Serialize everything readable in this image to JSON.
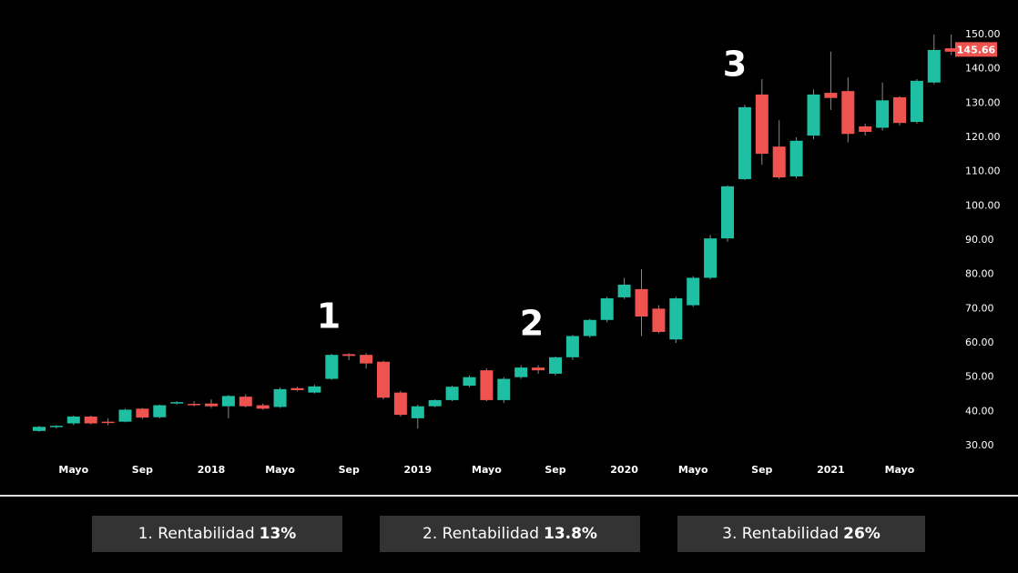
{
  "chart_data": {
    "type": "candlestick",
    "categories": [
      null,
      null,
      "Mayo",
      null,
      null,
      null,
      "Sep",
      null,
      null,
      null,
      "2018",
      null,
      null,
      null,
      "Mayo",
      null,
      null,
      null,
      "Sep",
      null,
      null,
      null,
      "2019",
      null,
      null,
      null,
      "Mayo",
      null,
      null,
      null,
      "Sep",
      null,
      null,
      null,
      "2020",
      null,
      null,
      null,
      "Mayo",
      null,
      null,
      null,
      "Sep",
      null,
      null,
      null,
      "2021",
      null,
      null,
      null,
      "Mayo",
      null,
      null,
      null
    ],
    "open": [
      34.3,
      35.5,
      36.5,
      38.5,
      37,
      37,
      40.8,
      38.3,
      42.3,
      42.2,
      42.3,
      41.5,
      44.3,
      41.8,
      41.3,
      46.8,
      45.5,
      49.5,
      56.7,
      56.5,
      54.5,
      45.5,
      38,
      41.5,
      43.3,
      47.5,
      52,
      43.3,
      50,
      52.8,
      51,
      55.8,
      62,
      66.7,
      73.3,
      75.7,
      70,
      61,
      71,
      79,
      90.5,
      107.8,
      132.5,
      117.3,
      108.6,
      120.5,
      133,
      133.5,
      123.2,
      122.8,
      131.7,
      124.5,
      136,
      146
    ],
    "high": [
      35.8,
      36,
      38.8,
      38.8,
      38,
      40.8,
      41,
      42,
      43,
      43,
      43.5,
      44.8,
      45,
      42.3,
      47,
      47.2,
      47.8,
      56.8,
      57,
      57,
      54.8,
      46,
      42,
      43.5,
      47.5,
      50.5,
      52.5,
      50,
      53.5,
      53.5,
      56,
      62.3,
      67,
      73.5,
      79,
      81.5,
      71,
      73.5,
      79.5,
      91.5,
      106,
      129.5,
      137,
      125,
      120,
      134,
      145,
      137.5,
      124,
      136,
      132,
      137,
      150,
      150
    ],
    "low": [
      34,
      35,
      36,
      36.2,
      36,
      36.8,
      37.8,
      38,
      42,
      41.5,
      41,
      38,
      41.2,
      40.5,
      41,
      46,
      45.2,
      49.2,
      55,
      52.5,
      43.5,
      38.5,
      35,
      41.2,
      43,
      47,
      43,
      42.5,
      49.5,
      51,
      50.5,
      55,
      61.5,
      66,
      72.8,
      62,
      62.8,
      60,
      70.5,
      78.5,
      89.5,
      107.5,
      112,
      107.8,
      108,
      119.5,
      128,
      118.5,
      120.5,
      122,
      123.5,
      124,
      135.5,
      144
    ],
    "close": [
      35.5,
      35.8,
      38.5,
      36.5,
      36.8,
      40.5,
      38.2,
      41.8,
      42.7,
      42,
      41.5,
      44.5,
      41.5,
      40.8,
      46.5,
      46.2,
      47.3,
      56.5,
      56.2,
      54,
      44,
      39,
      41.5,
      43.3,
      47.2,
      50,
      43.3,
      49.5,
      52.8,
      52,
      55.8,
      62,
      66.7,
      73,
      77,
      67.7,
      63.2,
      73,
      79,
      90.5,
      105.7,
      128.8,
      115.2,
      108.3,
      119,
      132.5,
      131.5,
      121,
      121.6,
      130.8,
      124.2,
      136.5,
      145.5,
      145
    ],
    "up_color": "#1fbfa4",
    "down_color": "#ef5350",
    "ylim": [
      30,
      150
    ],
    "yticks": [
      {
        "value": 30,
        "label": "30.00"
      },
      {
        "value": 40,
        "label": "40.00"
      },
      {
        "value": 50,
        "label": "50.00"
      },
      {
        "value": 60,
        "label": "60.00"
      },
      {
        "value": 70,
        "label": "70.00"
      },
      {
        "value": 80,
        "label": "80.00"
      },
      {
        "value": 90,
        "label": "90.00"
      },
      {
        "value": 100,
        "label": "100.00"
      },
      {
        "value": 110,
        "label": "110.00"
      },
      {
        "value": 120,
        "label": "120.00"
      },
      {
        "value": 130,
        "label": "130.00"
      },
      {
        "value": 140,
        "label": "140.00"
      },
      {
        "value": 150,
        "label": "150.00"
      }
    ],
    "last_price": 145.66,
    "annotations": [
      "1",
      "2",
      "3"
    ],
    "summary": [
      {
        "label": "1. Rentabilidad",
        "value": "13%"
      },
      {
        "label": "2. Rentabilidad",
        "value": "13.8%"
      },
      {
        "label": "3. Rentabilidad",
        "value": "26%"
      }
    ]
  }
}
